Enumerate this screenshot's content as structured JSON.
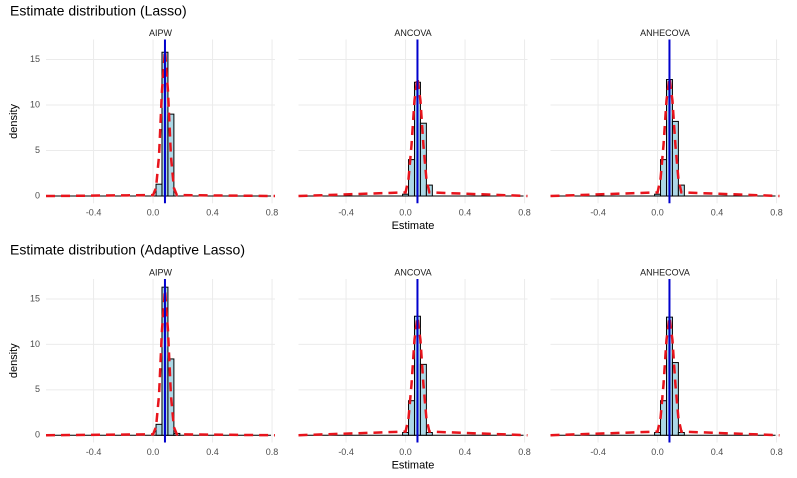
{
  "chart_data": [
    {
      "type": "histogram",
      "title": "Estimate distribution (Lasso)",
      "xlabel": "Estimate",
      "ylabel": "density",
      "xlim": [
        -0.72,
        0.82
      ],
      "ylim": [
        -0.8,
        17.2
      ],
      "xticks": [
        -0.4,
        {
          "value": 0,
          "label": "0.0"
        },
        0.4,
        0.8
      ],
      "yticks": [
        0,
        5,
        10,
        15
      ],
      "grid": true,
      "bar_color": "#add8e6",
      "density_color": "#e8141c",
      "vline_color": "#0000cd",
      "facets": [
        {
          "label": "AIPW",
          "bins": [
            -0.02,
            0.02,
            0.06,
            0.1,
            0.14,
            0.18
          ],
          "counts": [
            0,
            1.3,
            15.8,
            9,
            0
          ],
          "density_x": [
            -0.72,
            0,
            0.02,
            0.04,
            0.06,
            0.08,
            0.1,
            0.12,
            0.14,
            0.16,
            0.82
          ],
          "density_y": [
            0,
            0.1,
            0.9,
            4.4,
            11.6,
            16,
            11.6,
            4.4,
            0.9,
            0.1,
            0
          ],
          "vline": 0.08
        },
        {
          "label": "ANCOVA",
          "bins": [
            -0.02,
            0.02,
            0.06,
            0.1,
            0.14,
            0.18
          ],
          "counts": [
            0.2,
            4,
            12.5,
            8,
            1.2
          ],
          "density_x": [
            -0.72,
            0,
            0.02,
            0.04,
            0.06,
            0.08,
            0.1,
            0.12,
            0.14,
            0.16,
            0.82
          ],
          "density_y": [
            0,
            0.4,
            1.9,
            5.6,
            10.5,
            13,
            10.5,
            5.6,
            1.9,
            0.4,
            0
          ],
          "vline": 0.08
        },
        {
          "label": "ANHECOVA",
          "bins": [
            -0.02,
            0.02,
            0.06,
            0.1,
            0.14,
            0.18
          ],
          "counts": [
            0.2,
            4,
            12.8,
            8.2,
            1.2
          ],
          "density_x": [
            -0.72,
            0,
            0.02,
            0.04,
            0.06,
            0.08,
            0.1,
            0.12,
            0.14,
            0.16,
            0.82
          ],
          "density_y": [
            0,
            0.4,
            1.9,
            5.6,
            10.5,
            13,
            10.5,
            5.6,
            1.9,
            0.4,
            0
          ],
          "vline": 0.08
        }
      ]
    },
    {
      "type": "histogram",
      "title": "Estimate distribution (Adaptive Lasso)",
      "xlabel": "Estimate",
      "ylabel": "density",
      "xlim": [
        -0.72,
        0.82
      ],
      "ylim": [
        -0.8,
        17.2
      ],
      "xticks": [
        -0.4,
        {
          "value": 0,
          "label": "0.0"
        },
        0.4,
        0.8
      ],
      "yticks": [
        0,
        5,
        10,
        15
      ],
      "grid": true,
      "bar_color": "#add8e6",
      "density_color": "#e8141c",
      "vline_color": "#0000cd",
      "facets": [
        {
          "label": "AIPW",
          "bins": [
            -0.02,
            0.02,
            0.06,
            0.1,
            0.14,
            0.18
          ],
          "counts": [
            0,
            1.2,
            16.3,
            8.4,
            0.2
          ],
          "density_x": [
            -0.72,
            0,
            0.02,
            0.04,
            0.06,
            0.08,
            0.1,
            0.12,
            0.14,
            0.16,
            0.82
          ],
          "density_y": [
            0,
            0.1,
            0.9,
            4.4,
            11.6,
            16,
            11.6,
            4.4,
            0.9,
            0.1,
            0
          ],
          "vline": 0.08
        },
        {
          "label": "ANCOVA",
          "bins": [
            -0.02,
            0.02,
            0.06,
            0.1,
            0.14,
            0.18
          ],
          "counts": [
            0.3,
            3.8,
            13.1,
            7.8,
            0.3
          ],
          "density_x": [
            -0.72,
            0,
            0.02,
            0.04,
            0.06,
            0.08,
            0.1,
            0.12,
            0.14,
            0.16,
            0.82
          ],
          "density_y": [
            0,
            0.4,
            1.9,
            5.6,
            10.5,
            13,
            10.5,
            5.6,
            1.9,
            0.4,
            0
          ],
          "vline": 0.08
        },
        {
          "label": "ANHECOVA",
          "bins": [
            -0.02,
            0.02,
            0.06,
            0.1,
            0.14,
            0.18
          ],
          "counts": [
            0.3,
            3.8,
            13,
            8,
            0.3
          ],
          "density_x": [
            -0.72,
            0,
            0.02,
            0.04,
            0.06,
            0.08,
            0.1,
            0.12,
            0.14,
            0.16,
            0.82
          ],
          "density_y": [
            0,
            0.4,
            1.9,
            5.6,
            10.5,
            13,
            10.5,
            5.6,
            1.9,
            0.4,
            0
          ],
          "vline": 0.08
        }
      ]
    }
  ]
}
